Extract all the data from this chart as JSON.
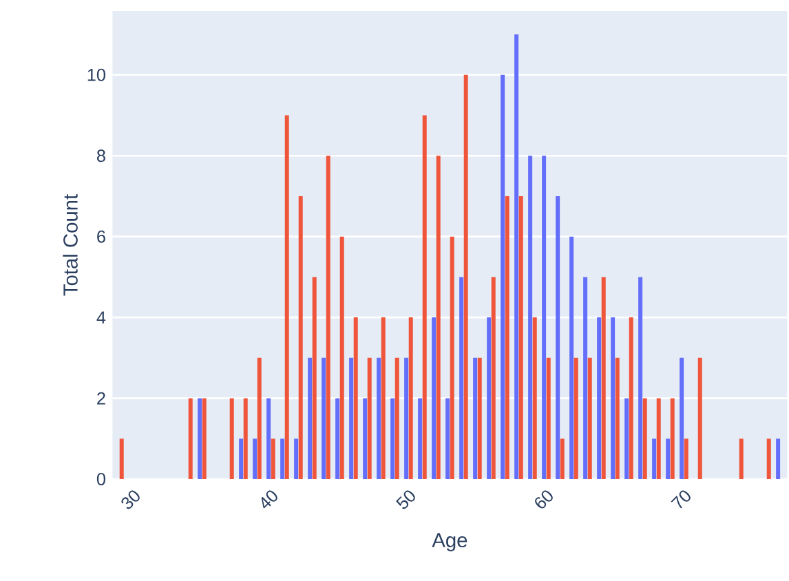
{
  "chart_data": {
    "type": "bar",
    "xlabel": "Age",
    "ylabel": "Total Count",
    "x": [
      29,
      30,
      31,
      32,
      33,
      34,
      35,
      36,
      37,
      38,
      39,
      40,
      41,
      42,
      43,
      44,
      45,
      46,
      47,
      48,
      49,
      50,
      51,
      52,
      53,
      54,
      55,
      56,
      57,
      58,
      59,
      60,
      61,
      62,
      63,
      64,
      65,
      66,
      67,
      68,
      69,
      70,
      71,
      72,
      73,
      74,
      75,
      76,
      77
    ],
    "series": [
      {
        "color": "#636efa",
        "values": [
          null,
          null,
          null,
          null,
          null,
          null,
          2,
          null,
          null,
          1,
          1,
          2,
          1,
          1,
          3,
          3,
          2,
          3,
          2,
          3,
          2,
          3,
          2,
          4,
          2,
          5,
          3,
          4,
          10,
          11,
          8,
          8,
          7,
          6,
          5,
          4,
          4,
          2,
          5,
          1,
          1,
          3,
          null,
          null,
          null,
          null,
          null,
          null,
          1
        ]
      },
      {
        "color": "#ef553b",
        "values": [
          1,
          null,
          null,
          null,
          null,
          2,
          2,
          null,
          2,
          2,
          3,
          1,
          9,
          7,
          5,
          8,
          6,
          4,
          3,
          4,
          3,
          4,
          9,
          8,
          6,
          10,
          3,
          5,
          7,
          7,
          4,
          3,
          1,
          3,
          3,
          5,
          3,
          4,
          2,
          2,
          2,
          1,
          3,
          null,
          null,
          1,
          null,
          1,
          null
        ]
      }
    ],
    "xlim": [
      28.5,
      77.5
    ],
    "xticks": [
      30,
      40,
      50,
      60,
      70
    ],
    "ylim": [
      0,
      11.58
    ],
    "yticks": [
      0,
      2,
      4,
      6,
      8,
      10
    ],
    "grid": "y"
  }
}
